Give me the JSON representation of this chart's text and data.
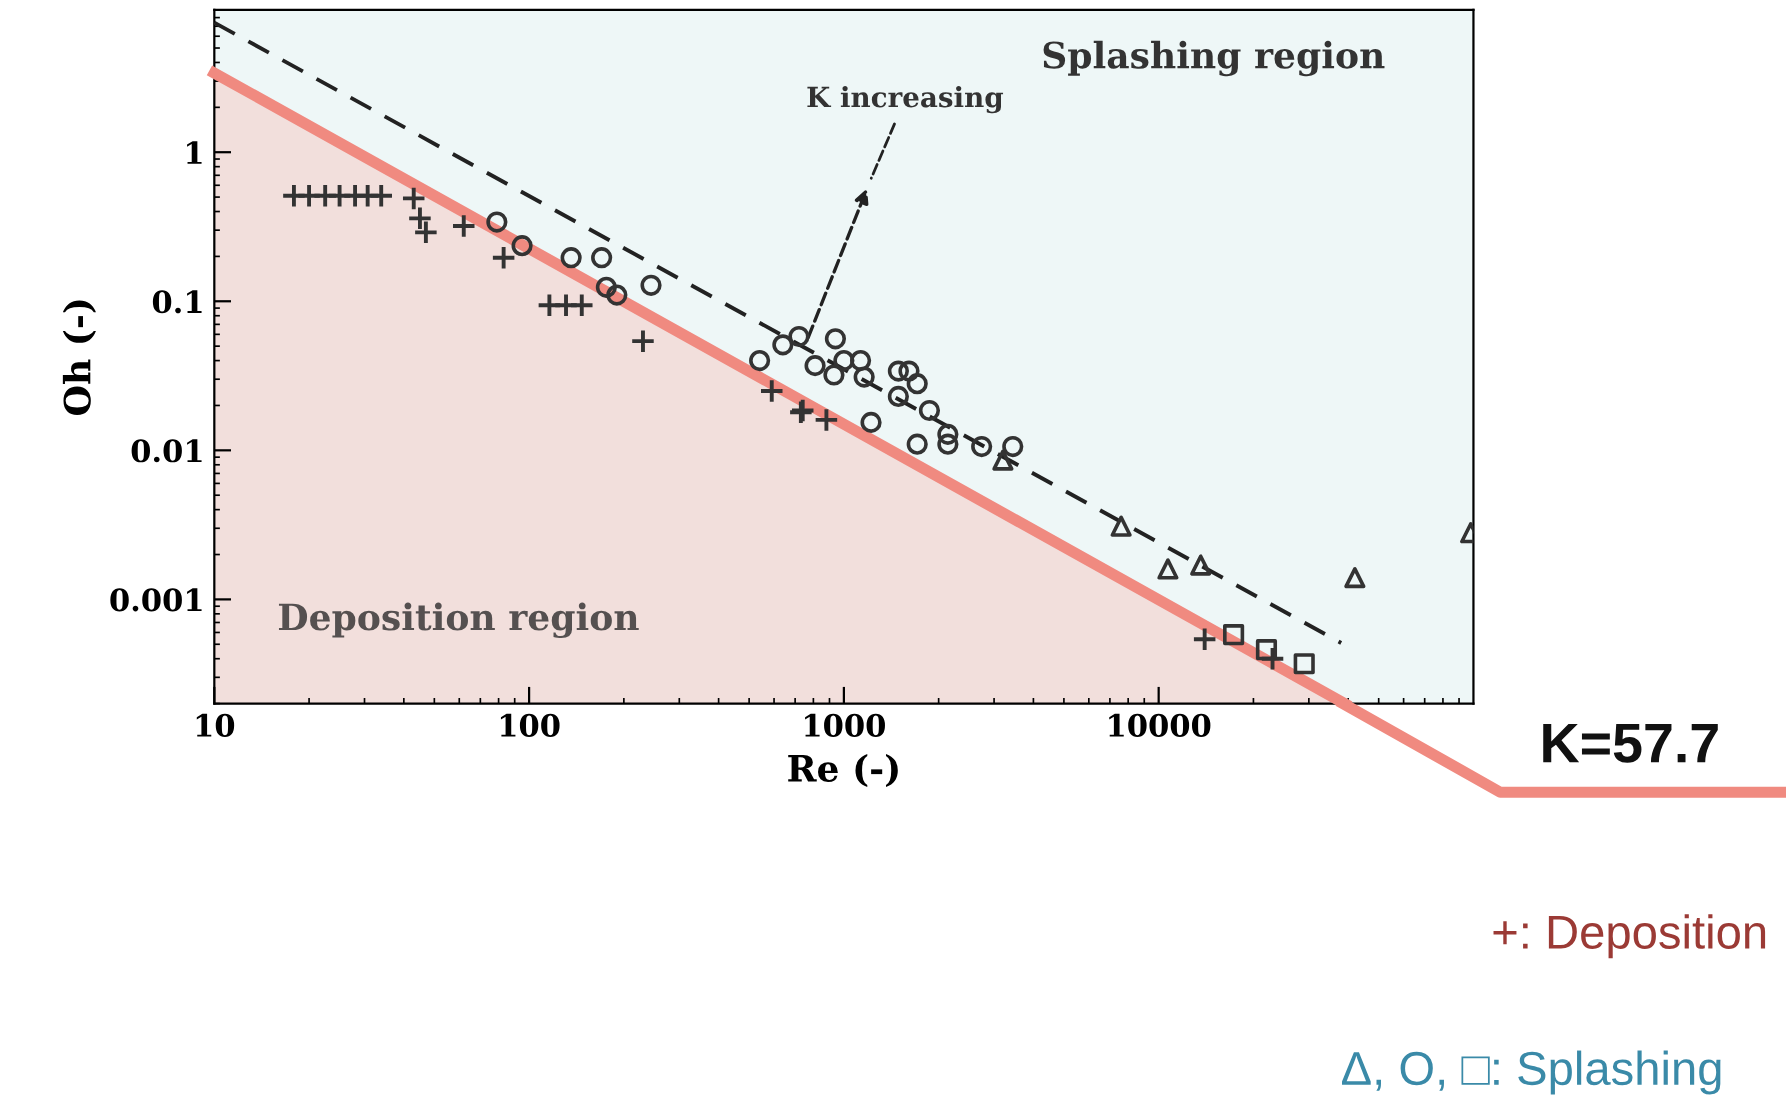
{
  "chart_data": {
    "type": "scatter",
    "xlabel": "Re (-)",
    "ylabel": "Oh (-)",
    "log": "xy",
    "xlim": [
      10,
      100000
    ],
    "ylim": [
      0.0002,
      9
    ],
    "xticks": [
      10,
      100,
      1000,
      10000
    ],
    "yticks": [
      0.001,
      0.01,
      0.1,
      1
    ],
    "grid": false,
    "legend": false,
    "series": [
      {
        "type": "line",
        "color": "#f08a80",
        "line_style": "solid",
        "x": [
          10,
          39000
        ],
        "values": [
          3.4,
          0.0002
        ]
      },
      {
        "type": "line",
        "color": "#222222",
        "line_style": "dashed",
        "x": [
          10,
          38000
        ],
        "values": [
          7.4,
          0.00051
        ]
      },
      {
        "marker": "cross",
        "color": "#333333",
        "x": [
          17.9,
          20,
          22.5,
          25,
          28,
          30.7,
          33.9,
          43,
          45,
          47,
          62,
          83,
          116,
          131,
          147,
          230,
          590,
          740,
          730,
          880,
          14000,
          23000
        ],
        "values": [
          0.51,
          0.51,
          0.51,
          0.51,
          0.51,
          0.51,
          0.51,
          0.49,
          0.36,
          0.29,
          0.32,
          0.196,
          0.094,
          0.094,
          0.094,
          0.054,
          0.025,
          0.0185,
          0.018,
          0.016,
          0.00054,
          0.0004
        ]
      },
      {
        "marker": "circle",
        "color": "#333333",
        "x": [
          79,
          95,
          136,
          170,
          176,
          190,
          244,
          540,
          640,
          720,
          940,
          810,
          930,
          1000,
          1130,
          1160,
          1490,
          1610,
          1710,
          1490,
          1870,
          1220,
          1710,
          2140,
          2140,
          2740,
          3440
        ],
        "values": [
          0.34,
          0.236,
          0.196,
          0.196,
          0.124,
          0.11,
          0.128,
          0.04,
          0.051,
          0.058,
          0.056,
          0.037,
          0.032,
          0.04,
          0.04,
          0.031,
          0.034,
          0.034,
          0.028,
          0.023,
          0.0185,
          0.0154,
          0.011,
          0.0128,
          0.011,
          0.0106,
          0.0106
        ]
      },
      {
        "marker": "triangle",
        "color": "#333333",
        "x": [
          3200,
          7600,
          10700,
          13600,
          42000,
          98000
        ],
        "values": [
          0.0086,
          0.0031,
          0.0016,
          0.0017,
          0.0014,
          0.0028
        ]
      },
      {
        "marker": "square",
        "color": "#333333",
        "x": [
          17300,
          22000,
          29000
        ],
        "values": [
          0.00058,
          0.00046,
          0.00037
        ]
      }
    ],
    "annotations": [
      "Splashing region",
      "K increasing",
      "Deposition region",
      "K=57.7",
      "+: Deposition",
      "Δ, O, □: Splashing"
    ]
  }
}
